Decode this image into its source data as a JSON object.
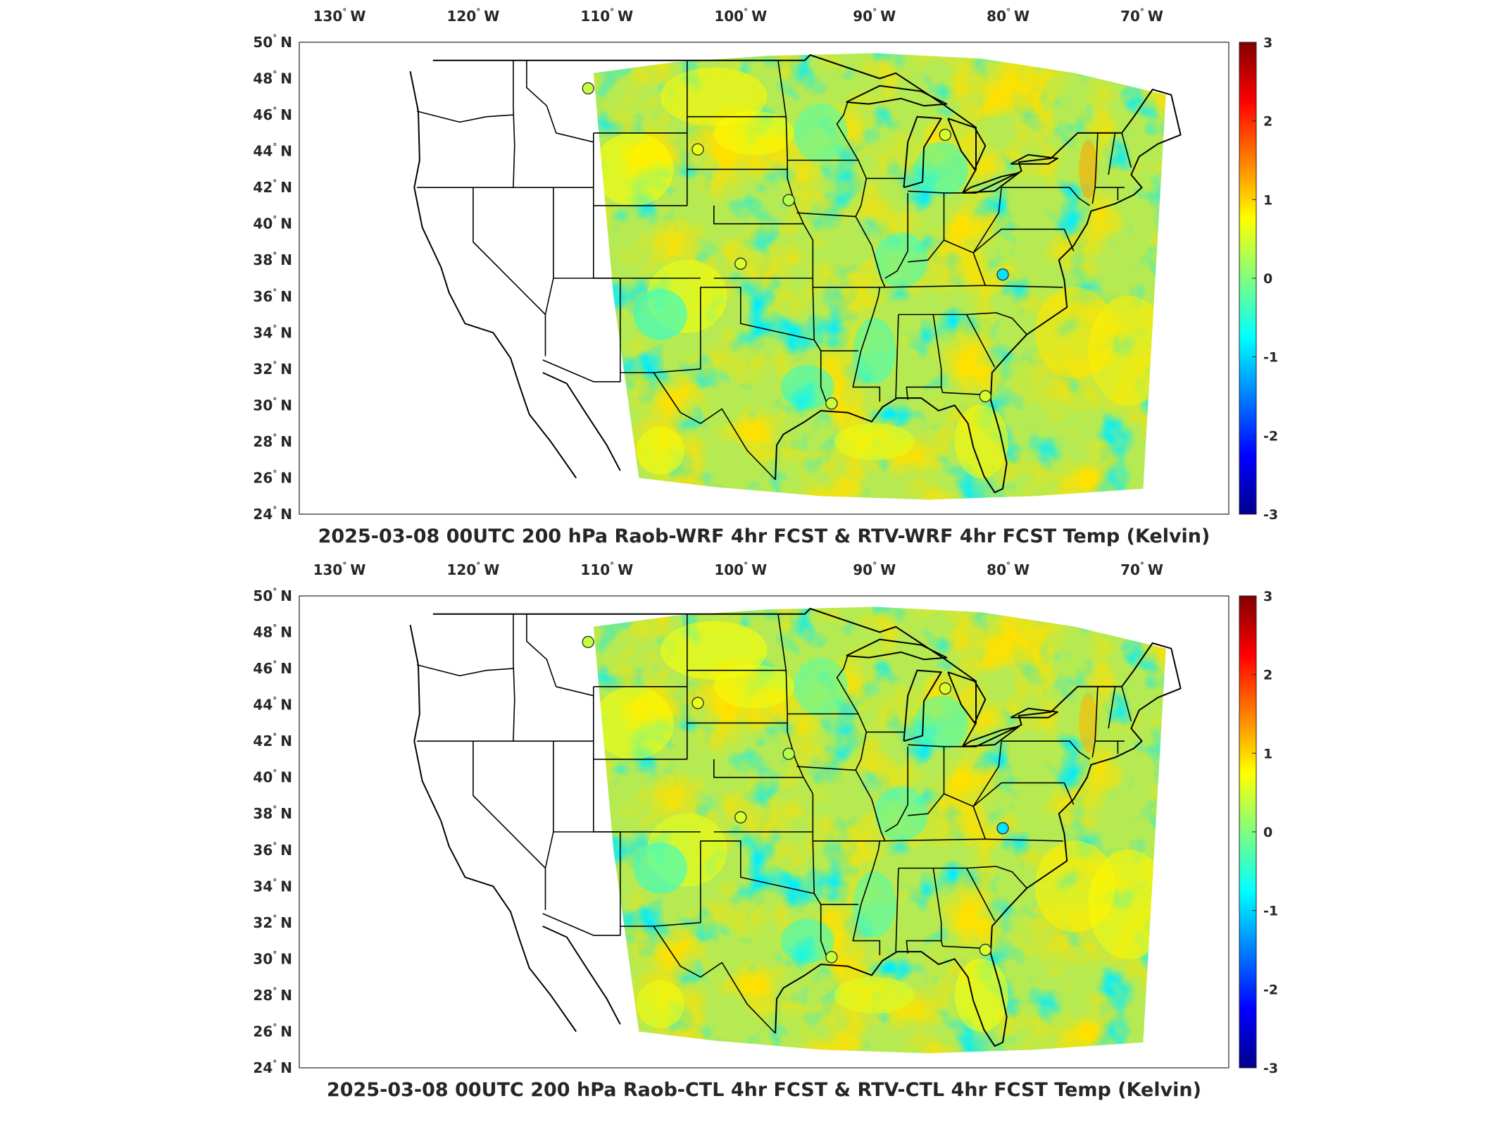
{
  "figure": {
    "panels": [
      {
        "title": "2025-03-08 00UTC 200 hPa Raob-WRF 4hr FCST & RTV-WRF 4hr FCST Temp (Kelvin)",
        "lon_ticks": [
          {
            "value": -130,
            "label": "130",
            "hemi": "W"
          },
          {
            "value": -120,
            "label": "120",
            "hemi": "W"
          },
          {
            "value": -110,
            "label": "110",
            "hemi": "W"
          },
          {
            "value": -100,
            "label": "100",
            "hemi": "W"
          },
          {
            "value": -90,
            "label": "90",
            "hemi": "W"
          },
          {
            "value": -80,
            "label": "80",
            "hemi": "W"
          },
          {
            "value": -70,
            "label": "70",
            "hemi": "W"
          }
        ],
        "lat_ticks": [
          {
            "value": 50,
            "label": "50",
            "hemi": "N"
          },
          {
            "value": 48,
            "label": "48",
            "hemi": "N"
          },
          {
            "value": 46,
            "label": "46",
            "hemi": "N"
          },
          {
            "value": 44,
            "label": "44",
            "hemi": "N"
          },
          {
            "value": 42,
            "label": "42",
            "hemi": "N"
          },
          {
            "value": 40,
            "label": "40",
            "hemi": "N"
          },
          {
            "value": 38,
            "label": "38",
            "hemi": "N"
          },
          {
            "value": 36,
            "label": "36",
            "hemi": "N"
          },
          {
            "value": 34,
            "label": "34",
            "hemi": "N"
          },
          {
            "value": 32,
            "label": "32",
            "hemi": "N"
          },
          {
            "value": 30,
            "label": "30",
            "hemi": "N"
          },
          {
            "value": 28,
            "label": "28",
            "hemi": "N"
          },
          {
            "value": 26,
            "label": "26",
            "hemi": "N"
          },
          {
            "value": 24,
            "label": "24",
            "hemi": "N"
          }
        ],
        "colorbar_ticks": [
          "3",
          "2",
          "1",
          "0",
          "-1",
          "-2",
          "-3"
        ],
        "raob_stations": [
          {
            "lon": -111.4,
            "lat": 47.46,
            "value": 0.4
          },
          {
            "lon": -103.2,
            "lat": 44.1,
            "value": 0.6
          },
          {
            "lon": -96.4,
            "lat": 41.3,
            "value": 0.3
          },
          {
            "lon": -100.0,
            "lat": 37.8,
            "value": 0.5
          },
          {
            "lon": -84.7,
            "lat": 44.9,
            "value": 0.5
          },
          {
            "lon": -80.4,
            "lat": 37.2,
            "value": -0.9
          },
          {
            "lon": -93.2,
            "lat": 30.1,
            "value": 0.4
          },
          {
            "lon": -81.7,
            "lat": 30.5,
            "value": 0.5
          }
        ]
      },
      {
        "title": "2025-03-08 00UTC 200 hPa Raob-CTL 4hr FCST & RTV-CTL 4hr FCST Temp (Kelvin)",
        "lon_ticks": [
          {
            "value": -130,
            "label": "130",
            "hemi": "W"
          },
          {
            "value": -120,
            "label": "120",
            "hemi": "W"
          },
          {
            "value": -110,
            "label": "110",
            "hemi": "W"
          },
          {
            "value": -100,
            "label": "100",
            "hemi": "W"
          },
          {
            "value": -90,
            "label": "90",
            "hemi": "W"
          },
          {
            "value": -80,
            "label": "80",
            "hemi": "W"
          },
          {
            "value": -70,
            "label": "70",
            "hemi": "W"
          }
        ],
        "lat_ticks": [
          {
            "value": 50,
            "label": "50",
            "hemi": "N"
          },
          {
            "value": 48,
            "label": "48",
            "hemi": "N"
          },
          {
            "value": 46,
            "label": "46",
            "hemi": "N"
          },
          {
            "value": 44,
            "label": "44",
            "hemi": "N"
          },
          {
            "value": 42,
            "label": "42",
            "hemi": "N"
          },
          {
            "value": 40,
            "label": "40",
            "hemi": "N"
          },
          {
            "value": 38,
            "label": "38",
            "hemi": "N"
          },
          {
            "value": 36,
            "label": "36",
            "hemi": "N"
          },
          {
            "value": 34,
            "label": "34",
            "hemi": "N"
          },
          {
            "value": 32,
            "label": "32",
            "hemi": "N"
          },
          {
            "value": 30,
            "label": "30",
            "hemi": "N"
          },
          {
            "value": 28,
            "label": "28",
            "hemi": "N"
          },
          {
            "value": 26,
            "label": "26",
            "hemi": "N"
          },
          {
            "value": 24,
            "label": "24",
            "hemi": "N"
          }
        ],
        "colorbar_ticks": [
          "3",
          "2",
          "1",
          "0",
          "-1",
          "-2",
          "-3"
        ],
        "raob_stations": [
          {
            "lon": -111.4,
            "lat": 47.46,
            "value": 0.4
          },
          {
            "lon": -103.2,
            "lat": 44.1,
            "value": 0.6
          },
          {
            "lon": -96.4,
            "lat": 41.3,
            "value": 0.3
          },
          {
            "lon": -100.0,
            "lat": 37.8,
            "value": 0.5
          },
          {
            "lon": -84.7,
            "lat": 44.9,
            "value": 0.5
          },
          {
            "lon": -80.4,
            "lat": 37.2,
            "value": -0.9
          },
          {
            "lon": -93.2,
            "lat": 30.1,
            "value": 0.4
          },
          {
            "lon": -81.7,
            "lat": 30.5,
            "value": 0.5
          }
        ]
      }
    ],
    "colors": {
      "scale_low": "#00008f",
      "scale_mid_low": "#00bfff",
      "scale_mid": "#7fff7f",
      "scale_mid_high": "#ffbf00",
      "scale_high": "#800000",
      "field_base": "#b5ea52",
      "state_lines": "#000000"
    }
  }
}
